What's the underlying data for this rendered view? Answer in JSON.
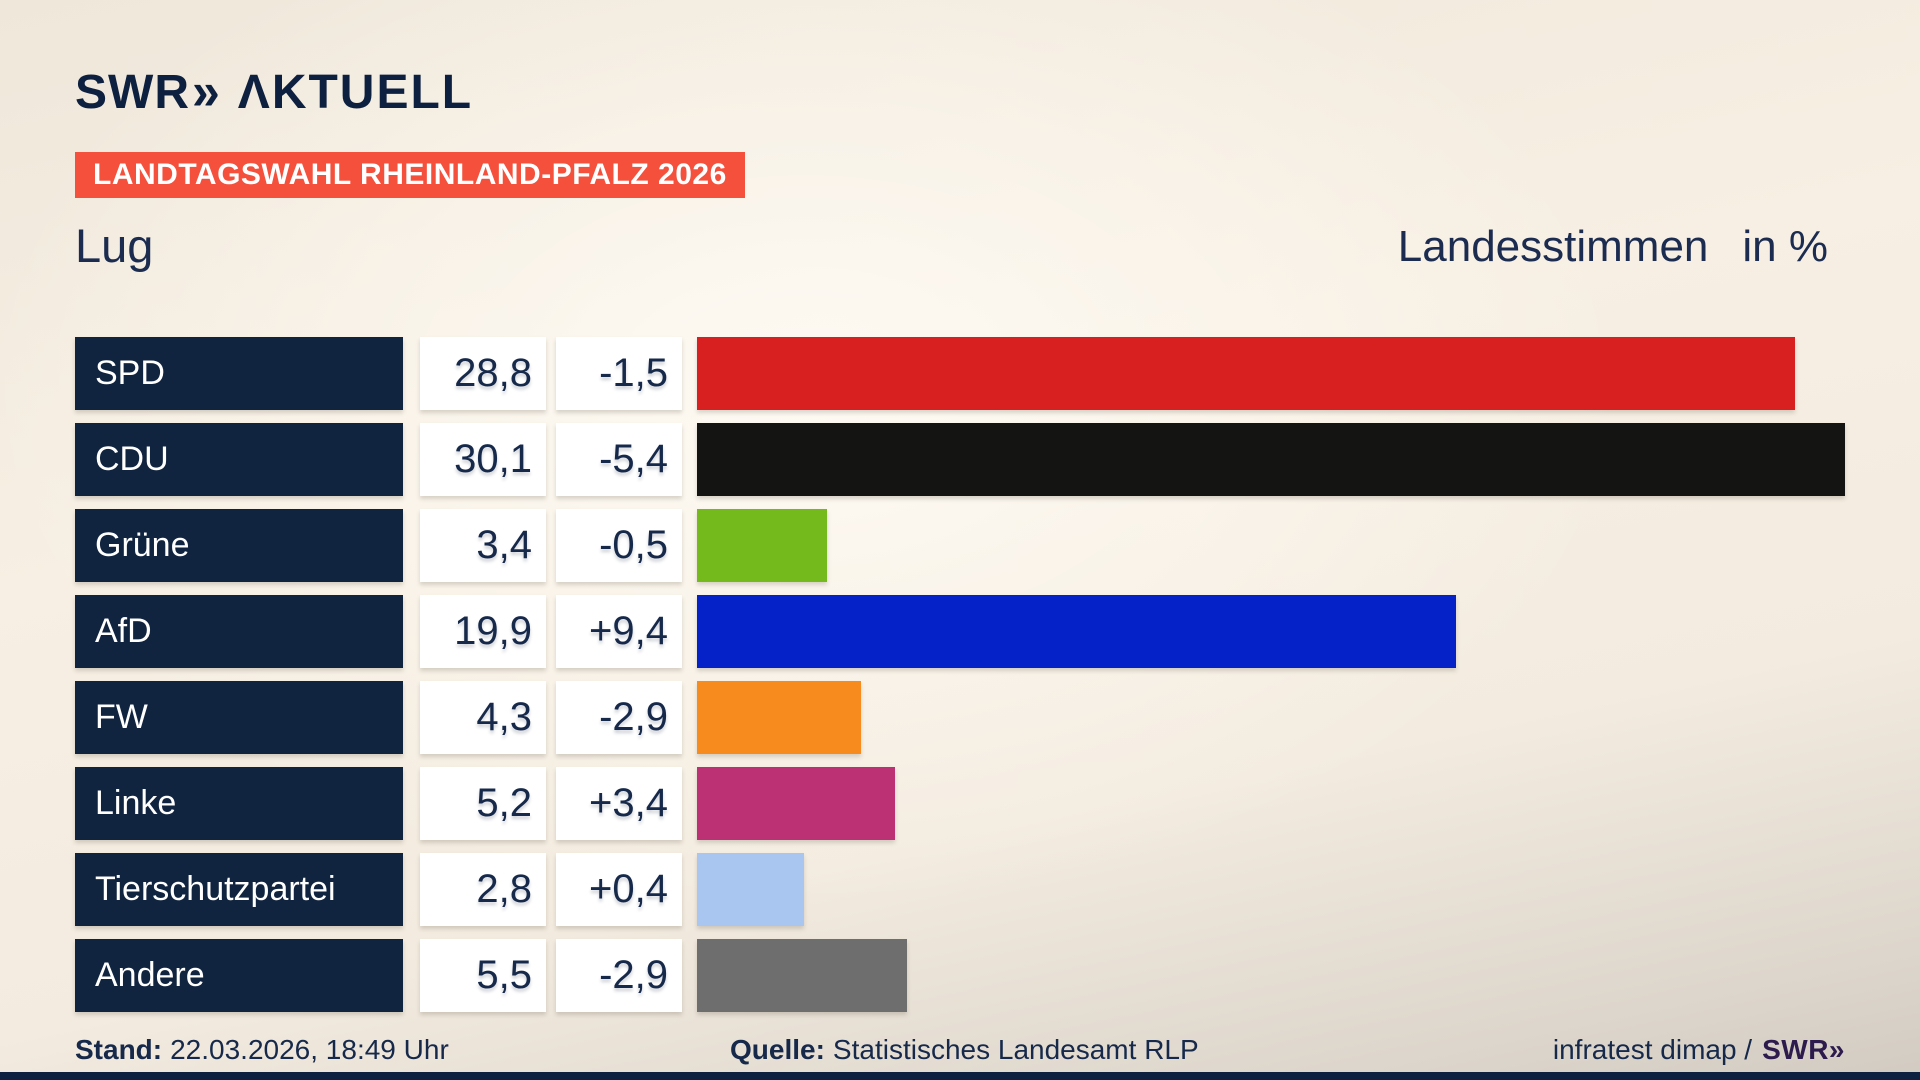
{
  "brand": {
    "logo_text": "SWR",
    "logo_chevrons": "»",
    "logo_suffix": "ΛKTUELL"
  },
  "badge": {
    "text": "LANDTAGSWAHL RHEINLAND-PFALZ 2026",
    "bg": "#f4503c"
  },
  "titles": {
    "municipality": "Lug",
    "measure": "Landesstimmen",
    "unit": "in %"
  },
  "chart_data": {
    "type": "bar",
    "orientation": "horizontal",
    "title": "Lug",
    "subtitle": "Landesstimmen in %",
    "xlim": [
      0,
      30.1
    ],
    "categories": [
      "SPD",
      "CDU",
      "Grüne",
      "AfD",
      "FW",
      "Linke",
      "Tierschutzpartei",
      "Andere"
    ],
    "values": [
      28.8,
      30.1,
      3.4,
      19.9,
      4.3,
      5.2,
      2.8,
      5.5
    ],
    "changes": [
      -1.5,
      -5.4,
      -0.5,
      9.4,
      -2.9,
      3.4,
      0.4,
      -2.9
    ],
    "value_labels": [
      "28,8",
      "30,1",
      "3,4",
      "19,9",
      "4,3",
      "5,2",
      "2,8",
      "5,5"
    ],
    "change_labels": [
      "-1,5",
      "-5,4",
      "-0,5",
      "+9,4",
      "-2,9",
      "+3,4",
      "+0,4",
      "-2,9"
    ],
    "bar_colors": [
      "#d7201f",
      "#141413",
      "#74ba1c",
      "#0522c8",
      "#f78b1e",
      "#bb3173",
      "#a8c6ef",
      "#6e6e6e"
    ]
  },
  "footer": {
    "stand_label": "Stand:",
    "stand_value": "22.03.2026, 18:49 Uhr",
    "source_label": "Quelle:",
    "source_value": "Statistisches Landesamt RLP",
    "credit_text": "infratest dimap /",
    "credit_brand": "SWR»"
  },
  "colors": {
    "navy_box": "#10233f",
    "text_navy": "#16294a",
    "badge_red": "#f4503c",
    "credit_purple": "#2d1b4e",
    "background_cream": "#f6eee2"
  }
}
